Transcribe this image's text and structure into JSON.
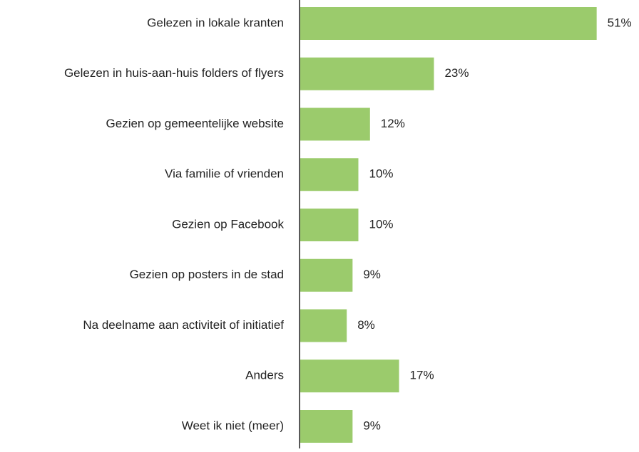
{
  "chart_data": {
    "type": "bar",
    "orientation": "horizontal",
    "categories": [
      "Gelezen in lokale kranten",
      "Gelezen in huis-aan-huis folders of flyers",
      "Gezien op gemeentelijke website",
      "Via familie of vrienden",
      "Gezien op Facebook",
      "Gezien op posters in de stad",
      "Na deelname aan activiteit of initiatief",
      "Anders",
      "Weet ik niet (meer)"
    ],
    "values": [
      51,
      23,
      12,
      10,
      10,
      9,
      8,
      17,
      9
    ],
    "value_labels": [
      "51%",
      "23%",
      "12%",
      "10%",
      "10%",
      "9%",
      "8%",
      "17%",
      "9%"
    ],
    "color": "#9bcb6c"
  }
}
